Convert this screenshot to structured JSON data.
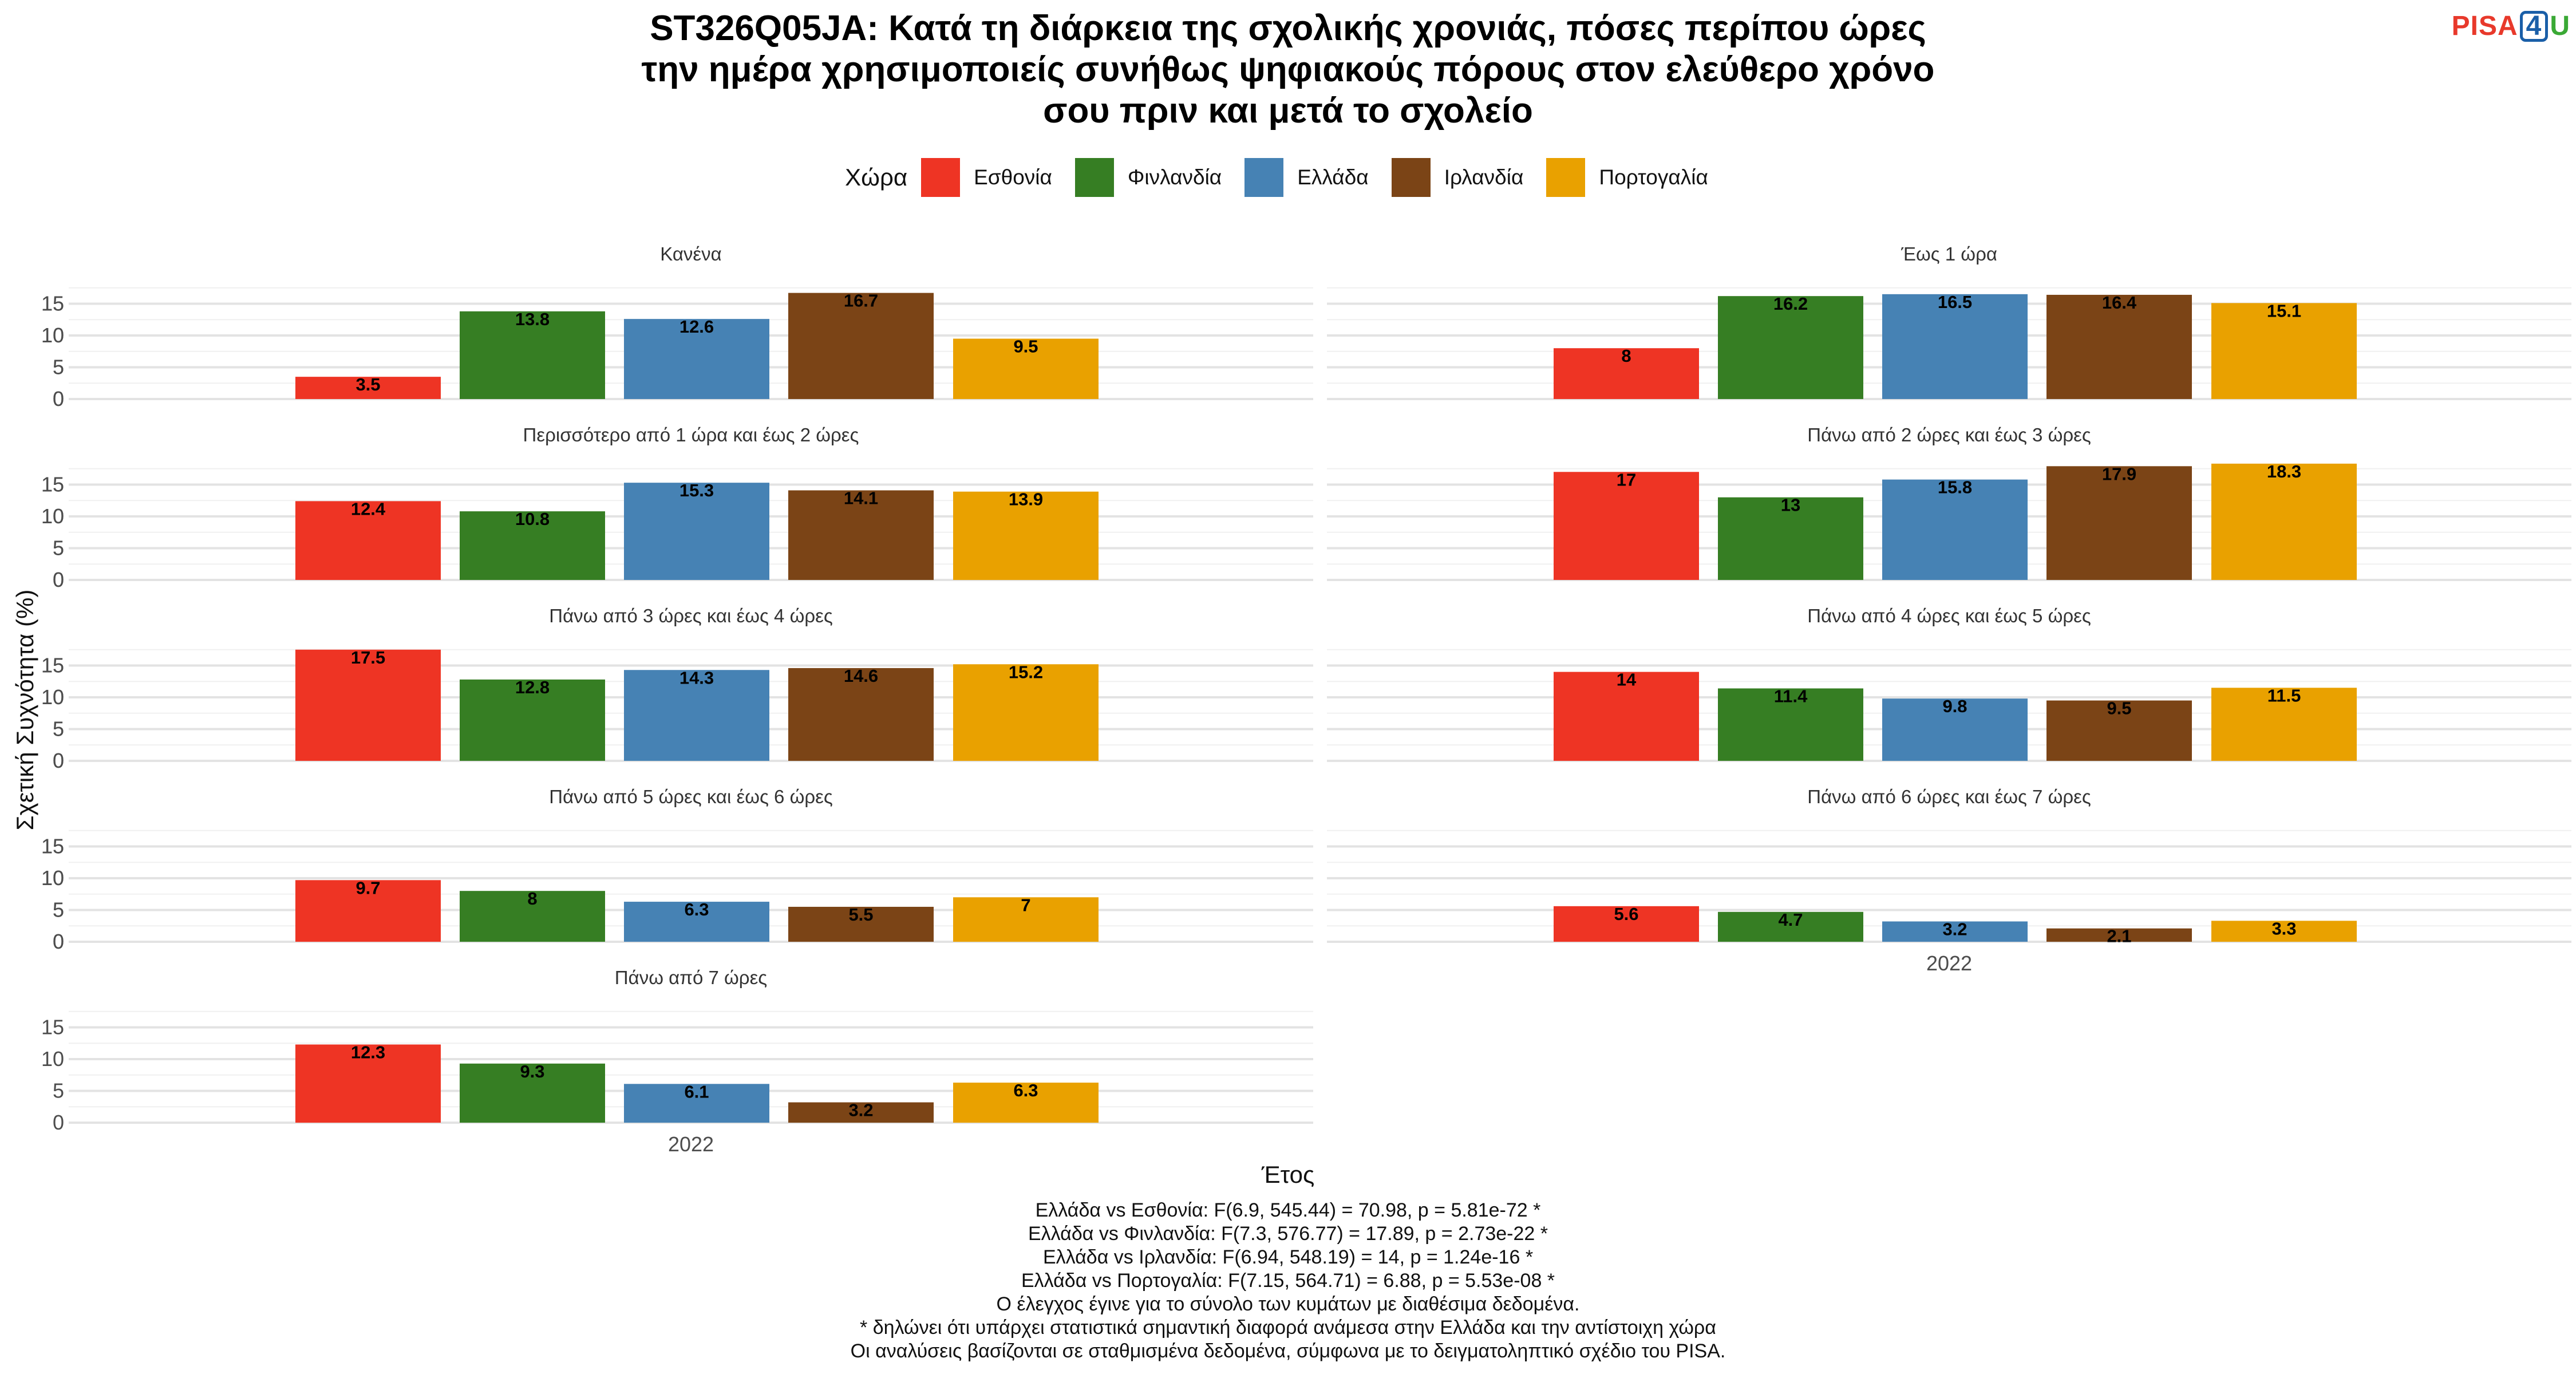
{
  "title_lines": [
    "ST326Q05JA: Κατά τη διάρκεια της σχολικής χρονιάς, πόσες περίπου ώρες",
    "την ημέρα χρησιμοποιείς συνήθως ψηφιακούς πόρους στον ελεύθερο χρόνο",
    "σου πριν και μετά το σχολείο"
  ],
  "logo": {
    "part1": "PISA",
    "part2": "4",
    "part3": "U"
  },
  "legend": {
    "title": "Χώρα"
  },
  "ylabel": "Σχετική Συχνότητα (%)",
  "xlabel": "Έτος",
  "notes": [
    "Ελλάδα vs Εσθονία: F(6.9, 545.44) = 70.98, p = 5.81e-72 *",
    "Ελλάδα vs Φινλανδία: F(7.3, 576.77) = 17.89, p = 2.73e-22 *",
    "Ελλάδα vs Ιρλανδία: F(6.94, 548.19) = 14, p = 1.24e-16 *",
    "Ελλάδα vs Πορτογαλία: F(7.15, 564.71) = 6.88, p = 5.53e-08 *",
    "Ο έλεγχος έγινε για το σύνολο των κυμάτων με διαθέσιμα δεδομένα.",
    "* δηλώνει ότι υπάρχει στατιστικά σημαντική διαφορά ανάμεσα στην Ελλάδα και την αντίστοιχη χώρα",
    "Οι αναλύσεις βασίζονται σε σταθμισμένα δεδομένα, σύμφωνα με το δειγματοληπτικό σχέδιο του PISA."
  ],
  "chart_data": {
    "type": "bar",
    "x_category": "2022",
    "yticks": [
      0,
      5,
      10,
      15
    ],
    "ylim": [
      0,
      18.3
    ],
    "grid": true,
    "legend_position": "top",
    "series": [
      {
        "name": "Εσθονία",
        "color": "#ee3424"
      },
      {
        "name": "Φινλανδία",
        "color": "#367e23"
      },
      {
        "name": "Ελλάδα",
        "color": "#4682b4"
      },
      {
        "name": "Ιρλανδία",
        "color": "#7b4416"
      },
      {
        "name": "Πορτογαλία",
        "color": "#e9a100"
      }
    ],
    "panels": [
      {
        "title": "Κανένα",
        "values": [
          3.5,
          13.8,
          12.6,
          16.7,
          9.5
        ],
        "labels": [
          "3.5",
          "13.8",
          "12.6",
          "16.7",
          "9.5"
        ]
      },
      {
        "title": "Έως 1 ώρα",
        "values": [
          8,
          16.2,
          16.5,
          16.4,
          15.1
        ],
        "labels": [
          "8",
          "16.2",
          "16.5",
          "16.4",
          "15.1"
        ]
      },
      {
        "title": "Περισσότερο από 1 ώρα και έως 2 ώρες",
        "values": [
          12.4,
          10.8,
          15.3,
          14.1,
          13.9
        ],
        "labels": [
          "12.4",
          "10.8",
          "15.3",
          "14.1",
          "13.9"
        ]
      },
      {
        "title": "Πάνω από 2 ώρες και έως 3 ώρες",
        "values": [
          17,
          13,
          15.8,
          17.9,
          18.3
        ],
        "labels": [
          "17",
          "13",
          "15.8",
          "17.9",
          "18.3"
        ]
      },
      {
        "title": "Πάνω από 3 ώρες και έως 4 ώρες",
        "values": [
          17.5,
          12.8,
          14.3,
          14.6,
          15.2
        ],
        "labels": [
          "17.5",
          "12.8",
          "14.3",
          "14.6",
          "15.2"
        ]
      },
      {
        "title": "Πάνω από 4 ώρες και έως 5 ώρες",
        "values": [
          14,
          11.4,
          9.8,
          9.5,
          11.5
        ],
        "labels": [
          "14",
          "11.4",
          "9.8",
          "9.5",
          "11.5"
        ]
      },
      {
        "title": "Πάνω από 5 ώρες και έως 6 ώρες",
        "values": [
          9.7,
          8,
          6.3,
          5.5,
          7
        ],
        "labels": [
          "9.7",
          "8",
          "6.3",
          "5.5",
          "7"
        ]
      },
      {
        "title": "Πάνω από 6 ώρες και έως 7 ώρες",
        "values": [
          5.6,
          4.7,
          3.2,
          2.1,
          3.3
        ],
        "labels": [
          "5.6",
          "4.7",
          "3.2",
          "2.1",
          "3.3"
        ]
      },
      {
        "title": "Πάνω από 7 ώρες",
        "values": [
          12.3,
          9.3,
          6.1,
          3.2,
          6.3
        ],
        "labels": [
          "12.3",
          "9.3",
          "6.1",
          "3.2",
          "6.3"
        ]
      }
    ]
  }
}
